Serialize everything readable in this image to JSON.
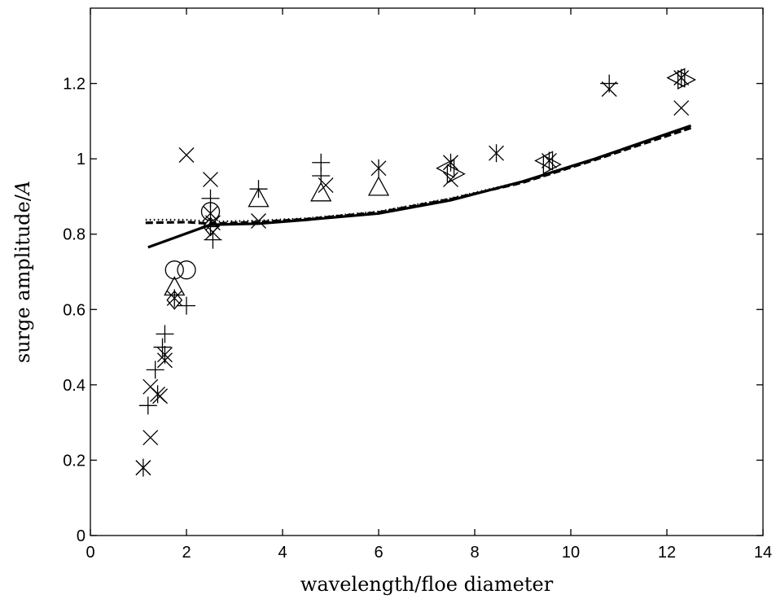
{
  "chart_data": {
    "type": "scatter",
    "title": "",
    "xlabel": "wavelength/floe diameter",
    "ylabel_prefix": "surge amplitude/",
    "ylabel_symbol": "A",
    "xlim": [
      0,
      14
    ],
    "ylim": [
      0,
      1.4
    ],
    "x_ticks": [
      0,
      2,
      4,
      6,
      8,
      10,
      12,
      14
    ],
    "y_ticks": [
      0,
      0.2,
      0.4,
      0.6,
      0.8,
      1,
      1.2
    ],
    "x_tick_labels": [
      "0",
      "2",
      "4",
      "6",
      "8",
      "10",
      "12",
      "14"
    ],
    "y_tick_labels": [
      "0",
      "0.2",
      "0.4",
      "0.6",
      "0.8",
      "1",
      "1.2"
    ],
    "grid": false,
    "legend": "none",
    "curves": [
      {
        "style": "solid",
        "points": [
          [
            1.2,
            0.765
          ],
          [
            2.5,
            0.825
          ],
          [
            3.5,
            0.828
          ],
          [
            4.5,
            0.838
          ],
          [
            6.0,
            0.855
          ],
          [
            7.5,
            0.89
          ],
          [
            9.0,
            0.94
          ],
          [
            10.5,
            1.0
          ],
          [
            12.5,
            1.088
          ]
        ]
      },
      {
        "style": "dashed",
        "points": [
          [
            1.15,
            0.83
          ],
          [
            2.0,
            0.832
          ],
          [
            2.5,
            0.828
          ],
          [
            3.5,
            0.832
          ],
          [
            4.5,
            0.84
          ],
          [
            6.0,
            0.858
          ],
          [
            7.5,
            0.893
          ],
          [
            9.0,
            0.937
          ],
          [
            10.5,
            0.997
          ],
          [
            12.5,
            1.082
          ]
        ]
      },
      {
        "style": "dotted",
        "points": [
          [
            1.15,
            0.838
          ],
          [
            2.0,
            0.838
          ],
          [
            2.5,
            0.833
          ],
          [
            3.5,
            0.836
          ],
          [
            4.5,
            0.842
          ],
          [
            6.0,
            0.86
          ],
          [
            7.5,
            0.895
          ],
          [
            9.0,
            0.94
          ],
          [
            10.5,
            1.0
          ],
          [
            12.5,
            1.086
          ]
        ]
      }
    ],
    "markers": [
      {
        "shape": "x",
        "points": [
          [
            1.1,
            0.18
          ],
          [
            1.25,
            0.26
          ],
          [
            1.25,
            0.395
          ],
          [
            1.45,
            0.37
          ],
          [
            1.55,
            0.465
          ],
          [
            2.0,
            1.01
          ],
          [
            2.5,
            0.945
          ],
          [
            2.55,
            0.83
          ],
          [
            2.55,
            0.805
          ],
          [
            3.5,
            0.835
          ],
          [
            4.9,
            0.93
          ],
          [
            7.5,
            0.945
          ],
          [
            12.3,
            1.135
          ],
          [
            10.8,
            1.185
          ]
        ]
      },
      {
        "shape": "plus",
        "points": [
          [
            1.2,
            0.345
          ],
          [
            1.35,
            0.44
          ],
          [
            1.5,
            0.5
          ],
          [
            1.55,
            0.535
          ],
          [
            2.0,
            0.61
          ],
          [
            2.5,
            0.895
          ],
          [
            2.55,
            0.785
          ],
          [
            2.5,
            0.82
          ],
          [
            3.5,
            0.92
          ],
          [
            4.8,
            0.99
          ],
          [
            4.8,
            0.955
          ],
          [
            10.8,
            1.2
          ]
        ]
      },
      {
        "shape": "asterisk",
        "points": [
          [
            1.1,
            0.18
          ],
          [
            1.4,
            0.375
          ],
          [
            1.55,
            0.48
          ],
          [
            1.75,
            0.63
          ],
          [
            2.5,
            0.855
          ],
          [
            6.0,
            0.975
          ],
          [
            7.5,
            0.99
          ],
          [
            8.45,
            1.015
          ],
          [
            9.55,
            0.995
          ],
          [
            12.3,
            1.215
          ]
        ]
      },
      {
        "shape": "circle",
        "points": [
          [
            1.75,
            0.705
          ],
          [
            2.0,
            0.705
          ],
          [
            2.5,
            0.86
          ]
        ]
      },
      {
        "shape": "triangle-up",
        "points": [
          [
            1.75,
            0.66
          ],
          [
            3.5,
            0.895
          ],
          [
            4.8,
            0.91
          ],
          [
            6.0,
            0.925
          ]
        ]
      },
      {
        "shape": "diamond",
        "points": [
          [
            1.75,
            0.625
          ],
          [
            2.5,
            0.82
          ]
        ]
      },
      {
        "shape": "triangle-left",
        "points": [
          [
            7.4,
            0.975
          ],
          [
            9.45,
            0.995
          ],
          [
            12.2,
            1.215
          ]
        ]
      },
      {
        "shape": "triangle-right",
        "points": [
          [
            7.6,
            0.96
          ],
          [
            9.6,
            0.985
          ],
          [
            12.4,
            1.21
          ]
        ]
      }
    ]
  }
}
